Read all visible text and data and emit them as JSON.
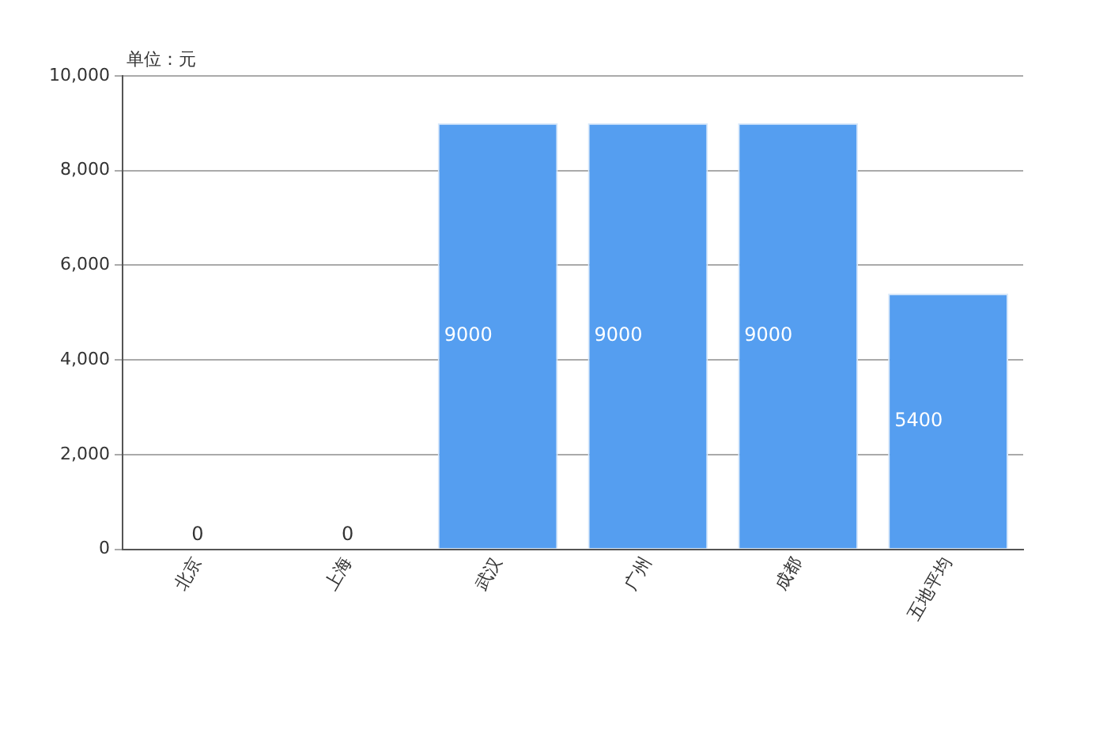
{
  "chart_data": {
    "type": "bar",
    "ylabel": "单位：元",
    "categories": [
      "北京",
      "上海",
      "武汉",
      "广州",
      "成都",
      "五地平均"
    ],
    "series": [
      {
        "color": "#559ef0",
        "values": [
          0,
          0,
          9000,
          9000,
          9000,
          5400
        ]
      }
    ],
    "ylim": [
      0,
      10000
    ],
    "yticks": [
      {
        "value": 0,
        "label": "0"
      },
      {
        "value": 2000,
        "label": "2,000"
      },
      {
        "value": 4000,
        "label": "4,000"
      },
      {
        "value": 6000,
        "label": "6,000"
      },
      {
        "value": 8000,
        "label": "8,000"
      },
      {
        "value": 10000,
        "label": "10,000"
      }
    ],
    "grid": "y",
    "data_labels": true
  }
}
